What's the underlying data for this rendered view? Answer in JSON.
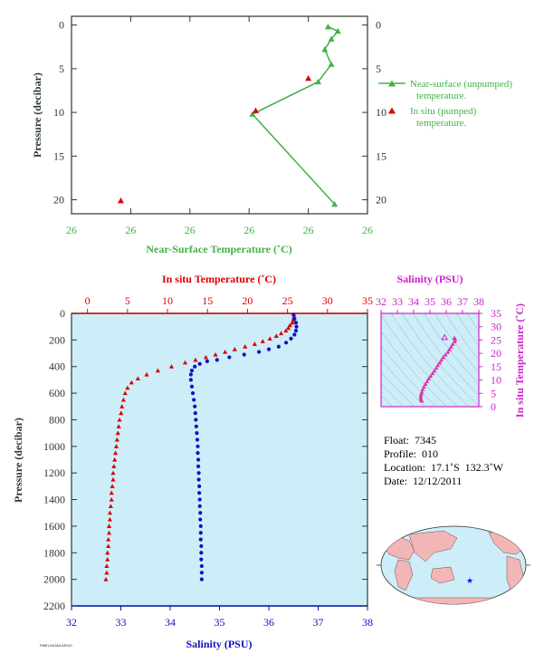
{
  "colors": {
    "near_surface": "#44b04a",
    "in_situ": "#dd0000",
    "salinity": "#1010c0",
    "ts_axis": "#cc22cc",
    "frame": "#2a3a2a",
    "panel_bg": "#cdeef8"
  },
  "chart_data": [
    {
      "type": "line",
      "xlabel": "Near-Surface Temperature (˚C)",
      "ylabel": "Pressure (decibar)",
      "x_tick_labels": [
        "26",
        "26",
        "26",
        "26",
        "26",
        "26"
      ],
      "y_ticks": [
        0,
        5,
        10,
        15,
        20
      ],
      "y_reversed": true,
      "legend_position": "right",
      "series": [
        {
          "name": "Near-surface (unpumped) temperature.",
          "marker": "triangle-line",
          "points": [
            [
              25.99,
              20.5
            ],
            [
              25.965,
              10.2
            ],
            [
              25.985,
              6.5
            ],
            [
              25.989,
              4.5
            ],
            [
              25.987,
              2.8
            ],
            [
              25.989,
              1.6
            ],
            [
              25.991,
              0.7
            ],
            [
              25.988,
              0.2
            ]
          ]
        },
        {
          "name": "In situ (pumped) temperature.",
          "marker": "triangle",
          "points": [
            [
              25.925,
              20.1
            ],
            [
              25.966,
              9.8
            ],
            [
              25.982,
              6.1
            ]
          ]
        }
      ]
    },
    {
      "type": "scatter",
      "ylabel": "Pressure (decibar)",
      "y_ticks": [
        0,
        200,
        400,
        600,
        800,
        1000,
        1200,
        1400,
        1600,
        1800,
        2000,
        2200
      ],
      "ylim": [
        2200,
        0
      ],
      "top_axis": {
        "label": "In situ Temperature (˚C)",
        "range": [
          -2,
          35
        ],
        "ticks": [
          0,
          5,
          10,
          15,
          20,
          25,
          30,
          35
        ]
      },
      "bottom_axis": {
        "label": "Salinity (PSU)",
        "range": [
          32,
          38
        ],
        "ticks": [
          32,
          33,
          34,
          35,
          36,
          37,
          38
        ]
      },
      "series": [
        {
          "name": "In situ Temperature",
          "marker": "triangle",
          "pressure": [
            10,
            30,
            50,
            70,
            90,
            110,
            130,
            150,
            170,
            190,
            210,
            230,
            250,
            270,
            290,
            310,
            330,
            350,
            370,
            400,
            430,
            460,
            490,
            520,
            560,
            600,
            650,
            700,
            750,
            800,
            850,
            900,
            950,
            1000,
            1050,
            1100,
            1150,
            1200,
            1250,
            1300,
            1350,
            1400,
            1450,
            1500,
            1550,
            1600,
            1650,
            1700,
            1750,
            1800,
            1850,
            1900,
            1950,
            2000
          ],
          "values": [
            25.8,
            25.8,
            25.7,
            25.6,
            25.3,
            25.1,
            24.8,
            24.2,
            23.6,
            22.8,
            21.9,
            20.9,
            19.7,
            18.4,
            17.2,
            16.0,
            14.8,
            13.5,
            12.2,
            10.5,
            8.8,
            7.4,
            6.3,
            5.5,
            5.0,
            4.7,
            4.5,
            4.3,
            4.2,
            4.0,
            3.9,
            3.8,
            3.7,
            3.6,
            3.5,
            3.4,
            3.3,
            3.2,
            3.2,
            3.1,
            3.0,
            3.0,
            2.9,
            2.8,
            2.8,
            2.7,
            2.7,
            2.6,
            2.6,
            2.5,
            2.5,
            2.4,
            2.4,
            2.3
          ]
        },
        {
          "name": "Salinity",
          "marker": "dot",
          "pressure": [
            10,
            40,
            70,
            100,
            130,
            160,
            190,
            220,
            250,
            270,
            290,
            310,
            330,
            350,
            360,
            380,
            400,
            430,
            460,
            500,
            550,
            600,
            650,
            700,
            750,
            800,
            850,
            900,
            950,
            1000,
            1050,
            1100,
            1150,
            1200,
            1250,
            1300,
            1350,
            1400,
            1450,
            1500,
            1550,
            1600,
            1650,
            1700,
            1750,
            1800,
            1850,
            1900,
            1950,
            2000
          ],
          "values": [
            36.5,
            36.52,
            36.55,
            36.56,
            36.55,
            36.52,
            36.45,
            36.35,
            36.2,
            36.0,
            35.8,
            35.5,
            35.2,
            34.95,
            34.75,
            34.6,
            34.5,
            34.44,
            34.42,
            34.42,
            34.44,
            34.46,
            34.48,
            34.5,
            34.51,
            34.52,
            34.53,
            34.54,
            34.55,
            34.56,
            34.56,
            34.57,
            34.57,
            34.58,
            34.58,
            34.59,
            34.59,
            34.6,
            34.6,
            34.61,
            34.61,
            34.62,
            34.62,
            34.62,
            34.63,
            34.63,
            34.63,
            34.64,
            34.64,
            34.64
          ]
        }
      ]
    },
    {
      "type": "scatter",
      "xlabel": "Salinity (PSU)",
      "ylabel": "In situ Temperature (˚C)",
      "xlim": [
        32,
        38
      ],
      "ylim": [
        0,
        35
      ],
      "x_ticks": [
        32,
        33,
        34,
        35,
        36,
        37,
        38
      ],
      "y_ticks": [
        0,
        5,
        10,
        15,
        20,
        25,
        30,
        35
      ],
      "points": [
        [
          36.5,
          25.8
        ],
        [
          36.55,
          25.3
        ],
        [
          36.52,
          24.5
        ],
        [
          36.4,
          23.5
        ],
        [
          36.3,
          22.5
        ],
        [
          36.2,
          21.5
        ],
        [
          36.1,
          20.5
        ],
        [
          35.95,
          19.5
        ],
        [
          35.82,
          18.5
        ],
        [
          35.7,
          17.5
        ],
        [
          35.6,
          16.5
        ],
        [
          35.48,
          15.5
        ],
        [
          35.38,
          14.5
        ],
        [
          35.27,
          13.5
        ],
        [
          35.16,
          12.5
        ],
        [
          35.04,
          11.5
        ],
        [
          34.92,
          10.5
        ],
        [
          34.82,
          9.5
        ],
        [
          34.72,
          8.5
        ],
        [
          34.63,
          7.5
        ],
        [
          34.56,
          6.5
        ],
        [
          34.5,
          5.5
        ],
        [
          34.46,
          4.8
        ],
        [
          34.44,
          4.0
        ],
        [
          34.44,
          3.2
        ],
        [
          34.46,
          2.6
        ],
        [
          34.5,
          2.2
        ]
      ],
      "surface_marker": [
        35.9,
        26.0
      ]
    }
  ],
  "info": {
    "float": "Float:  7345",
    "profile": "Profile:  010",
    "location": "Location:  17.1˚S  132.3˚W",
    "date": "Date:  12/12/2011"
  },
  "map": {
    "icon": "world-map",
    "float_marker": "blue-star"
  },
  "credit": "PMEL/NOAA ARGO"
}
